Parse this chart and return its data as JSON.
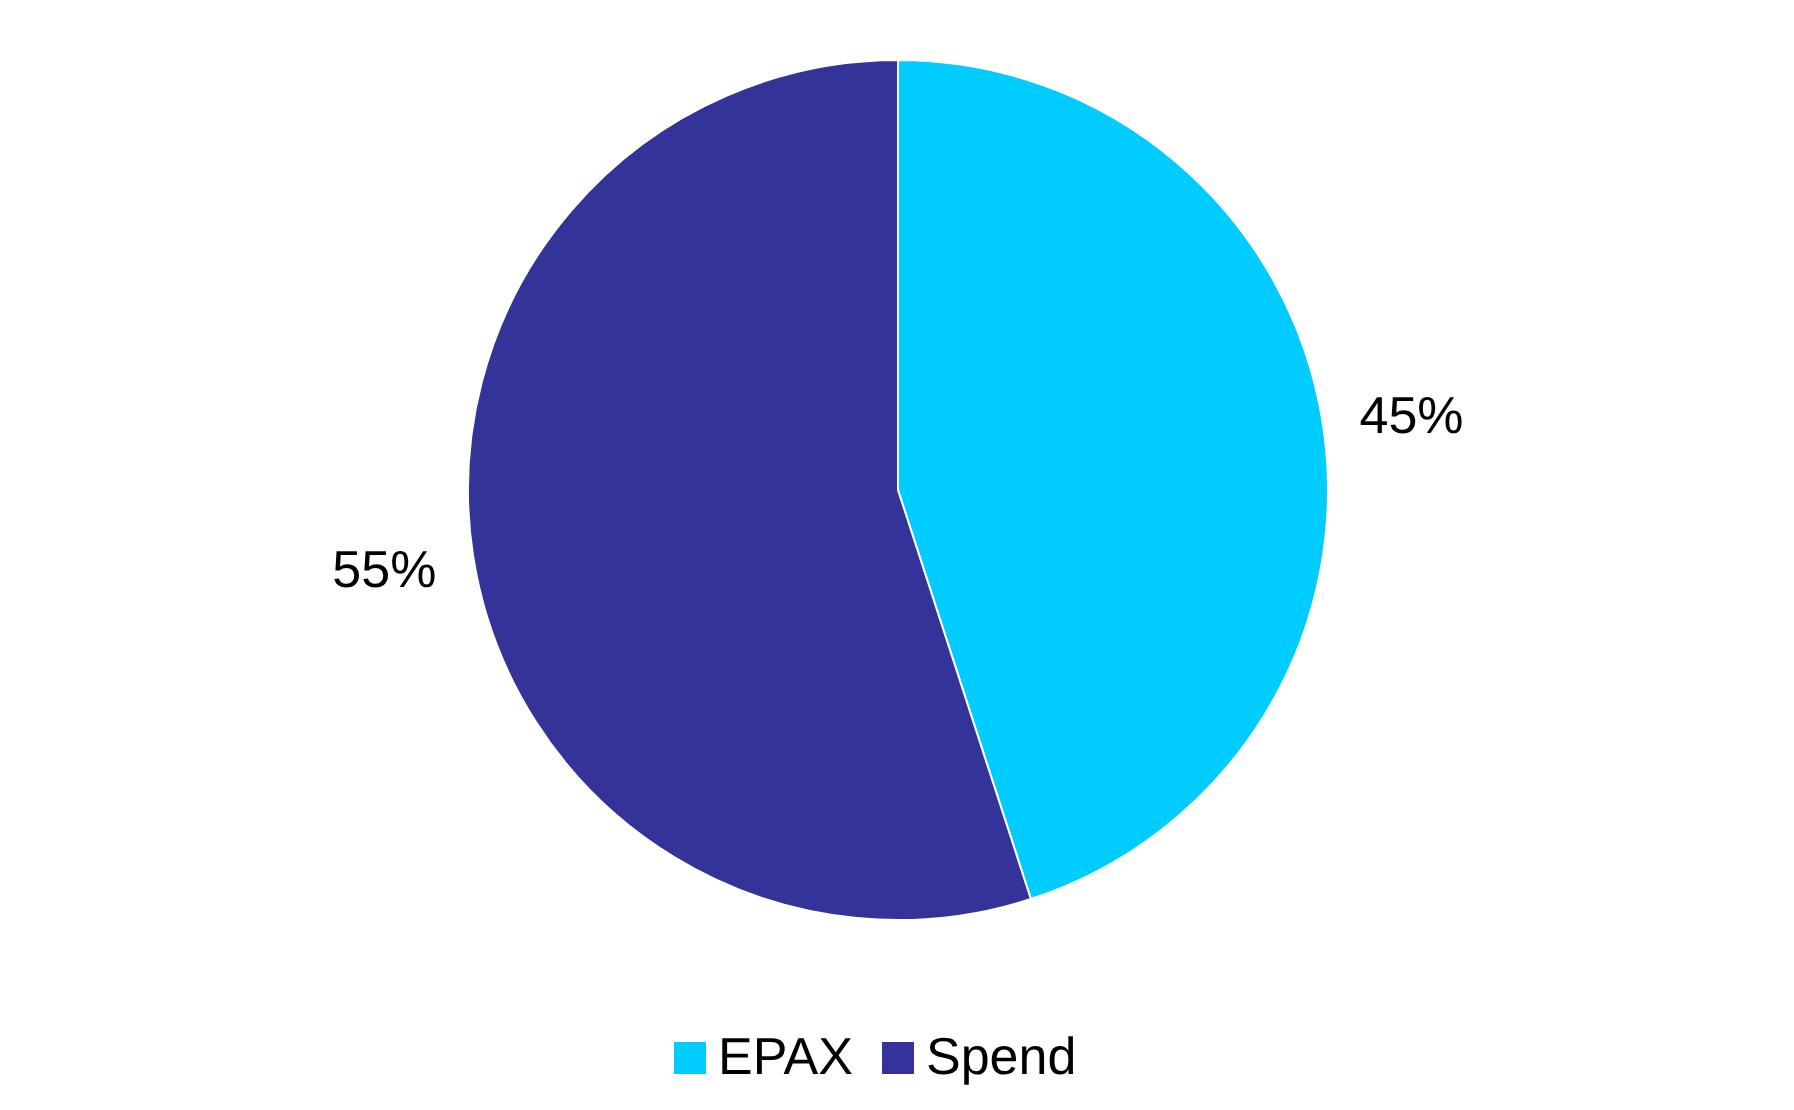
{
  "chart_data": {
    "type": "pie",
    "categories": [
      "EPAX",
      "Spend"
    ],
    "values": [
      45,
      55
    ],
    "colors": [
      "#00ccff",
      "#333399"
    ],
    "value_labels": [
      "45%",
      "55%"
    ],
    "legend": "bottom"
  }
}
